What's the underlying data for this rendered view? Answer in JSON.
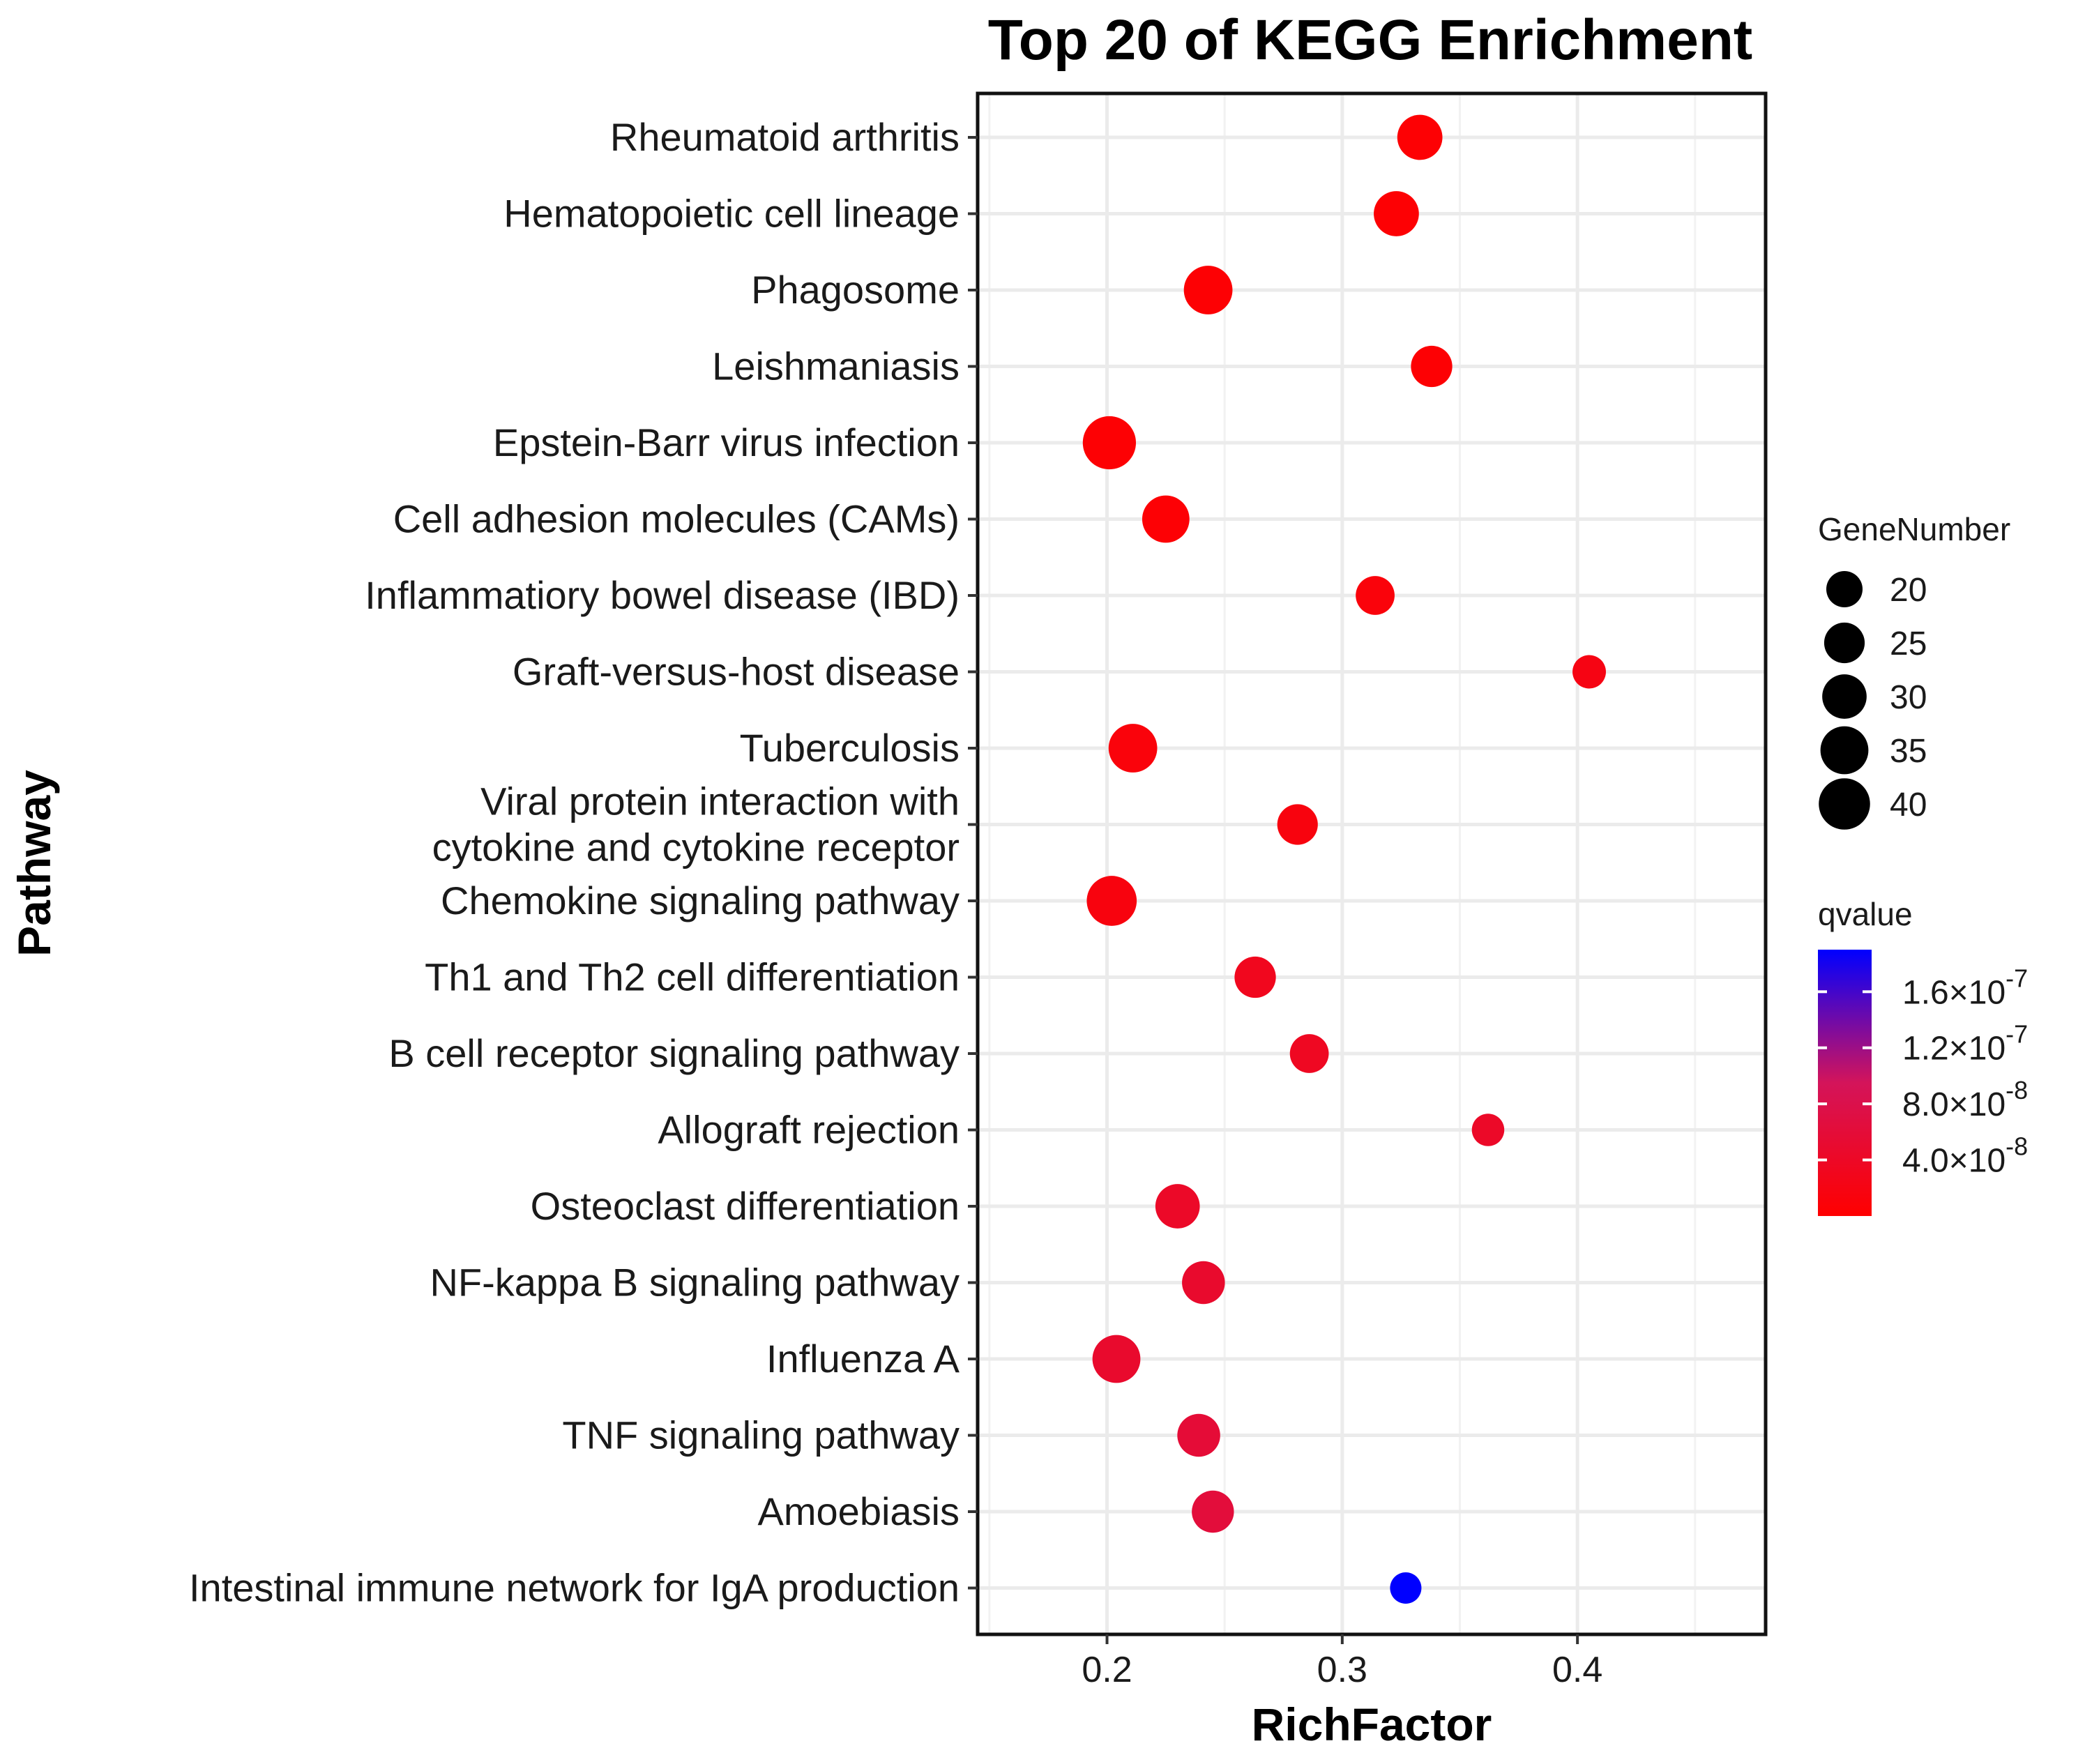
{
  "chart_data": {
    "type": "scatter",
    "title": "Top 20 of KEGG Enrichment",
    "xlabel": "RichFactor",
    "ylabel": "Pathway",
    "xlim": [
      0.145,
      0.48
    ],
    "x_ticks": [
      0.2,
      0.3,
      0.4
    ],
    "x_tick_labels": [
      "0.2",
      "0.3",
      "0.4"
    ],
    "grid": true,
    "points": [
      {
        "pathway": [
          "Rheumatoid arthritis"
        ],
        "richFactor": 0.333,
        "geneNumber": 31,
        "qvalue": 4e-09
      },
      {
        "pathway": [
          "Hematopoietic cell lineage"
        ],
        "richFactor": 0.323,
        "geneNumber": 31,
        "qvalue": 4e-09
      },
      {
        "pathway": [
          "Phagosome"
        ],
        "richFactor": 0.243,
        "geneNumber": 36,
        "qvalue": 4e-09
      },
      {
        "pathway": [
          "Leishmaniasis"
        ],
        "richFactor": 0.338,
        "geneNumber": 26,
        "qvalue": 4e-09
      },
      {
        "pathway": [
          "Epstein-Barr virus infection"
        ],
        "richFactor": 0.201,
        "geneNumber": 43,
        "qvalue": 4e-09
      },
      {
        "pathway": [
          "Cell adhesion molecules (CAMs)"
        ],
        "richFactor": 0.225,
        "geneNumber": 34,
        "qvalue": 5e-09
      },
      {
        "pathway": [
          "Inflammatiory bowel disease (IBD)"
        ],
        "richFactor": 0.314,
        "geneNumber": 23,
        "qvalue": 1.2e-08
      },
      {
        "pathway": [
          "Graft-versus-host disease"
        ],
        "richFactor": 0.405,
        "geneNumber": 17,
        "qvalue": 2e-08
      },
      {
        "pathway": [
          "Tuberculosis"
        ],
        "richFactor": 0.211,
        "geneNumber": 36,
        "qvalue": 1.2e-08
      },
      {
        "pathway": [
          "Viral protein interaction with",
          "cytokine and cytokine receptor"
        ],
        "richFactor": 0.281,
        "geneNumber": 25,
        "qvalue": 1.5e-08
      },
      {
        "pathway": [
          "Chemokine signaling pathway"
        ],
        "richFactor": 0.202,
        "geneNumber": 38,
        "qvalue": 1.5e-08
      },
      {
        "pathway": [
          "Th1 and Th2 cell differentiation"
        ],
        "richFactor": 0.263,
        "geneNumber": 26,
        "qvalue": 3.2e-08
      },
      {
        "pathway": [
          "B cell receptor signaling pathway"
        ],
        "richFactor": 0.286,
        "geneNumber": 23,
        "qvalue": 3.6e-08
      },
      {
        "pathway": [
          "Allograft rejection"
        ],
        "richFactor": 0.362,
        "geneNumber": 16,
        "qvalue": 4.2e-08
      },
      {
        "pathway": [
          "Osteoclast differentiation"
        ],
        "richFactor": 0.23,
        "geneNumber": 30,
        "qvalue": 4.2e-08
      },
      {
        "pathway": [
          "NF-kappa B signaling pathway"
        ],
        "richFactor": 0.241,
        "geneNumber": 28,
        "qvalue": 4.8e-08
      },
      {
        "pathway": [
          "Influenza A"
        ],
        "richFactor": 0.204,
        "geneNumber": 35,
        "qvalue": 4.8e-08
      },
      {
        "pathway": [
          "TNF signaling pathway"
        ],
        "richFactor": 0.239,
        "geneNumber": 28,
        "qvalue": 5.8e-08
      },
      {
        "pathway": [
          "Amoebiasis"
        ],
        "richFactor": 0.245,
        "geneNumber": 27,
        "qvalue": 6.2e-08
      },
      {
        "pathway": [
          "Intestinal immune network for IgA production"
        ],
        "richFactor": 0.327,
        "geneNumber": 15,
        "qvalue": 1.9e-07
      }
    ],
    "size_legend": {
      "title": "GeneNumber",
      "values": [
        20,
        25,
        30,
        35,
        40
      ],
      "labels": [
        "20",
        "25",
        "30",
        "35",
        "40"
      ]
    },
    "color_legend": {
      "title": "qvalue",
      "min": 0,
      "max": 1.9e-07,
      "low_color": "#FF0000",
      "high_color": "#0000FF",
      "ticks": [
        {
          "value": 4e-08,
          "mantissa": "4.0",
          "exponent": "-8"
        },
        {
          "value": 8e-08,
          "mantissa": "8.0",
          "exponent": "-8"
        },
        {
          "value": 1.2e-07,
          "mantissa": "1.2",
          "exponent": "-7"
        },
        {
          "value": 1.6e-07,
          "mantissa": "1.6",
          "exponent": "-7"
        }
      ]
    }
  }
}
